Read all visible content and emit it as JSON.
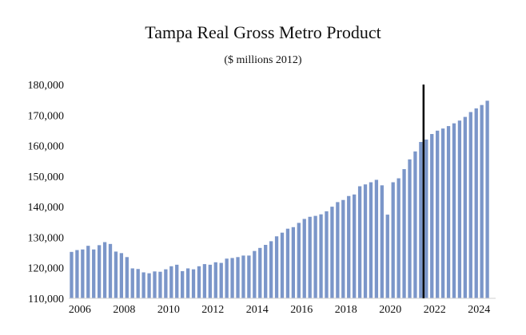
{
  "chart_data": {
    "type": "bar",
    "title": "Tampa Real Gross Metro Product",
    "subtitle": "($ millions 2012)",
    "xlabel": "",
    "ylabel": "",
    "ylim": [
      110000,
      180000
    ],
    "y_ticks": [
      "110,000",
      "120,000",
      "130,000",
      "140,000",
      "150,000",
      "160,000",
      "170,000",
      "180,000"
    ],
    "y_tick_values": [
      110000,
      120000,
      130000,
      140000,
      150000,
      160000,
      170000,
      180000
    ],
    "x_ticks": [
      "2006",
      "2008",
      "2010",
      "2012",
      "2014",
      "2016",
      "2018",
      "2020",
      "2022",
      "2024"
    ],
    "x_tick_values": [
      2006,
      2008,
      2010,
      2012,
      2014,
      2016,
      2018,
      2020,
      2022,
      2024
    ],
    "x_start": 2005.625,
    "x_step": 0.25,
    "bar_color": "#7b96c9",
    "marker_line": {
      "x": 2021.5,
      "color": "#000000"
    },
    "values": [
      125200,
      125800,
      126000,
      127200,
      126000,
      127400,
      128400,
      127800,
      125300,
      124800,
      123500,
      119800,
      119600,
      118500,
      118200,
      118800,
      118700,
      119500,
      120500,
      121000,
      118900,
      119800,
      119500,
      120500,
      121200,
      121000,
      121800,
      121600,
      123000,
      123200,
      123500,
      124000,
      124000,
      125500,
      126500,
      127500,
      128700,
      130300,
      131500,
      132800,
      133300,
      134700,
      136000,
      136700,
      137000,
      137500,
      138500,
      140000,
      141500,
      142200,
      143500,
      144000,
      146700,
      147300,
      148000,
      148800,
      147000,
      137400,
      148000,
      149300,
      152300,
      155500,
      158100,
      161200,
      162000,
      163800,
      164900,
      165600,
      166400,
      167300,
      168200,
      169400,
      171000,
      172200,
      173300,
      174700
    ]
  }
}
